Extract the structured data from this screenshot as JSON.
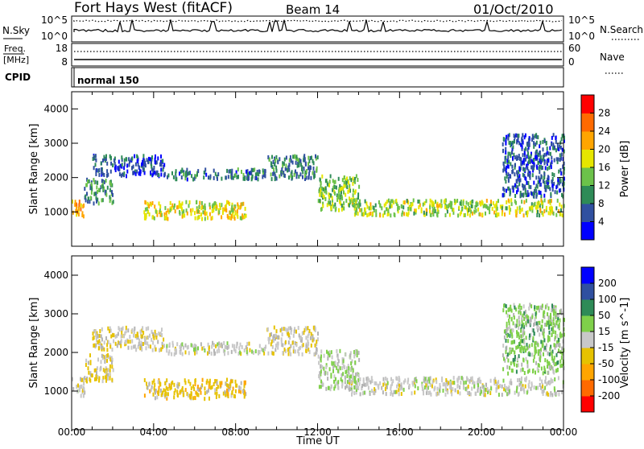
{
  "header": {
    "station": "Fort Hays West (fitACF)",
    "beam": "Beam 14",
    "date": "01/Oct/2010"
  },
  "noise_panel": {
    "left_label": "N.Sky",
    "left_ticks": [
      "10^5",
      "10^0"
    ],
    "right_ticks": [
      "10^5",
      "10^0"
    ],
    "right_label": "N.Search"
  },
  "freq_panel": {
    "label_line1": "Freq.",
    "label_line2": "[MHz]",
    "left_ticks": [
      "18",
      "8"
    ],
    "right_ticks": [
      "60",
      "0"
    ],
    "right_label": "Nave"
  },
  "cpid_panel": {
    "label": "CPID",
    "mode_text": "normal 150"
  },
  "colors": {
    "power_scale": [
      "#0000ff",
      "#3050a0",
      "#2e8b57",
      "#6cc24a",
      "#e6e600",
      "#ffa500",
      "#ff6a00",
      "#ff0000"
    ],
    "velocity_scale": [
      "#ff0000",
      "#ff6a00",
      "#ffa500",
      "#e6c200",
      "#c8c8c8",
      "#7fd04a",
      "#2e8b57",
      "#3050a0",
      "#0000ff"
    ],
    "ground_scatter": "#b4b4b4"
  },
  "chart_data": [
    {
      "type": "heatmap",
      "name": "power",
      "xlabel": "Time UT",
      "ylabel": "Slant Range [km]",
      "x_ticks": [
        "00:00",
        "04:00",
        "08:00",
        "12:00",
        "16:00",
        "20:00",
        "00:00"
      ],
      "xlim_hours": [
        0,
        24
      ],
      "ylim": [
        0,
        4500
      ],
      "y_ticks": [
        1000,
        2000,
        3000,
        4000
      ],
      "colorbar": {
        "label": "Power [dB]",
        "ticks": [
          "4",
          "8",
          "12",
          "16",
          "20",
          "24",
          "28"
        ],
        "range": [
          0,
          32
        ]
      },
      "bands": [
        {
          "t": [
            0.0,
            0.6
          ],
          "r": [
            900,
            1400
          ],
          "v": 22
        },
        {
          "t": [
            0.6,
            2.0
          ],
          "r": [
            1300,
            2000
          ],
          "v": 10
        },
        {
          "t": [
            1.0,
            4.5
          ],
          "r": [
            2100,
            2700
          ],
          "v": 6
        },
        {
          "t": [
            3.5,
            8.5
          ],
          "r": [
            850,
            1350
          ],
          "v": 18
        },
        {
          "t": [
            4.5,
            9.5
          ],
          "r": [
            2000,
            2300
          ],
          "v": 8
        },
        {
          "t": [
            9.5,
            12.0
          ],
          "r": [
            2000,
            2700
          ],
          "v": 9
        },
        {
          "t": [
            12.0,
            14.0
          ],
          "r": [
            1100,
            2100
          ],
          "v": 14
        },
        {
          "t": [
            13.5,
            24.0
          ],
          "r": [
            950,
            1400
          ],
          "v": 16
        },
        {
          "t": [
            21.0,
            24.0
          ],
          "r": [
            1500,
            3300
          ],
          "v": 6
        }
      ]
    },
    {
      "type": "heatmap",
      "name": "velocity",
      "xlabel": "Time UT",
      "ylabel": "Slant Range [km]",
      "x_ticks": [
        "00:00",
        "04:00",
        "08:00",
        "12:00",
        "16:00",
        "20:00",
        "00:00"
      ],
      "xlim_hours": [
        0,
        24
      ],
      "ylim": [
        0,
        4500
      ],
      "y_ticks": [
        1000,
        2000,
        3000,
        4000
      ],
      "colorbar": {
        "label": "Velocity [m s^-1]",
        "ticks": [
          "200",
          "100",
          "50",
          "15",
          "-15",
          "-50",
          "-100",
          "-200"
        ],
        "range": [
          -250,
          250
        ]
      },
      "bands": [
        {
          "t": [
            0.0,
            0.6
          ],
          "r": [
            900,
            1400
          ],
          "v": -5
        },
        {
          "t": [
            0.6,
            2.0
          ],
          "r": [
            1300,
            2000
          ],
          "v": -40
        },
        {
          "t": [
            1.0,
            4.5
          ],
          "r": [
            2100,
            2700
          ],
          "v": -30
        },
        {
          "t": [
            3.5,
            8.5
          ],
          "r": [
            850,
            1350
          ],
          "v": -60
        },
        {
          "t": [
            4.5,
            9.5
          ],
          "r": [
            2000,
            2300
          ],
          "v": 0
        },
        {
          "t": [
            9.5,
            12.0
          ],
          "r": [
            2000,
            2700
          ],
          "v": -20
        },
        {
          "t": [
            12.0,
            14.0
          ],
          "r": [
            1100,
            2100
          ],
          "v": 30
        },
        {
          "t": [
            13.5,
            24.0
          ],
          "r": [
            950,
            1400
          ],
          "v": 0
        },
        {
          "t": [
            21.0,
            24.0
          ],
          "r": [
            1500,
            3300
          ],
          "v": 60
        }
      ]
    }
  ]
}
